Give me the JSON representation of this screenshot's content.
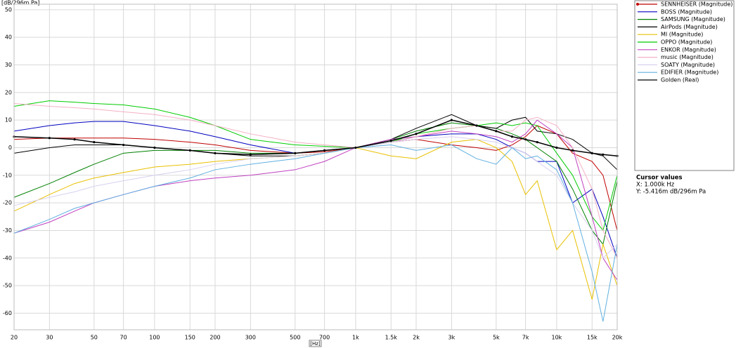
{
  "chart_data": {
    "type": "line",
    "ylabel": "[dB/296m Pa]",
    "xlabel": "[Hz]",
    "x_scale": "log",
    "grid": true,
    "legend": "right",
    "xlim": [
      20,
      20000
    ],
    "ylim": [
      -66,
      52
    ],
    "xticks": [
      20,
      30,
      50,
      70,
      100,
      150,
      200,
      300,
      500,
      700,
      {
        "value": 1000,
        "label": "1k"
      },
      {
        "value": 1500,
        "label": "1.5k"
      },
      {
        "value": 2000,
        "label": "2k"
      },
      {
        "value": 3000,
        "label": "3k"
      },
      {
        "value": 5000,
        "label": "5k"
      },
      {
        "value": 7000,
        "label": "7k"
      },
      {
        "value": 10000,
        "label": "10k"
      },
      {
        "value": 15000,
        "label": "15k"
      },
      {
        "value": 20000,
        "label": "20k"
      }
    ],
    "yticks": [
      50,
      40,
      30,
      20,
      10,
      0,
      -10,
      -20,
      -30,
      -40,
      -50,
      -60
    ],
    "x": [
      20,
      30,
      40,
      50,
      70,
      100,
      150,
      200,
      300,
      500,
      700,
      1000,
      1500,
      2000,
      3000,
      4000,
      5000,
      6000,
      7000,
      8000,
      10000,
      12000,
      15000,
      17000,
      20000
    ],
    "series": [
      {
        "name": "SENNHEISER (Magnitude)",
        "color": "#c00000",
        "marker_in_legend": true,
        "values": [
          3,
          3.5,
          3.5,
          3.5,
          3.5,
          3,
          2,
          1,
          -1,
          -2,
          -1.5,
          0,
          2,
          3,
          1,
          0,
          -1,
          1,
          4,
          8,
          5,
          -2,
          -5,
          -10,
          -30
        ]
      },
      {
        "name": "BOSS (Magnitude)",
        "color": "#0000c0",
        "values": [
          6,
          8,
          9,
          9.5,
          9.5,
          8,
          6,
          4,
          1,
          -2,
          -1,
          0,
          2,
          4,
          5,
          5,
          3,
          0,
          -2,
          -5,
          -5,
          -20,
          -15,
          -25,
          -40
        ]
      },
      {
        "name": "SAMSUNG (Magnitude)",
        "color": "#008000",
        "values": [
          -18,
          -13,
          -9,
          -6,
          -2,
          -1,
          -1,
          -1,
          -2,
          -2,
          -1,
          0,
          3,
          6,
          9,
          8,
          7,
          5,
          3,
          0,
          -5,
          -15,
          -30,
          -35,
          -12
        ]
      },
      {
        "name": "AirPods (Magnitude)",
        "color": "#000000",
        "values": [
          -2,
          0,
          1,
          1,
          1,
          0,
          -1,
          -2,
          -3,
          -3,
          -2,
          0,
          3,
          7,
          12,
          8,
          7,
          10,
          11,
          6,
          5,
          3,
          -2,
          -3,
          -8
        ]
      },
      {
        "name": "MI (Magnitude)",
        "color": "#e8c000",
        "values": [
          -23,
          -17,
          -13,
          -11,
          -9,
          -7,
          -6,
          -5,
          -4,
          -3,
          -2,
          0,
          -3,
          -4,
          2,
          3,
          0,
          -5,
          -17,
          -12,
          -37,
          -30,
          -55,
          -35,
          -50
        ]
      },
      {
        "name": "OPPO (Magnitude)",
        "color": "#00cc00",
        "values": [
          15,
          17,
          16.5,
          16,
          15.5,
          14,
          11,
          8,
          3,
          1,
          0.5,
          0,
          2,
          5,
          7,
          8,
          9,
          8,
          9,
          8,
          -2,
          -10,
          -25,
          -30,
          -10
        ]
      },
      {
        "name": "ENKOR (Magnitude)",
        "color": "#c040c0",
        "values": [
          -31,
          -27,
          -23,
          -20,
          -17,
          -14,
          -12,
          -11,
          -10,
          -8,
          -5,
          0,
          3,
          4,
          6,
          5,
          4,
          2,
          5,
          10,
          5,
          0,
          -25,
          -40,
          -48
        ]
      },
      {
        "name": "music (Magnitude)",
        "color": "#f4b0c4",
        "values": [
          16,
          15,
          14.5,
          14,
          13,
          12,
          10,
          8,
          5,
          2,
          1,
          0,
          2,
          4,
          7,
          8,
          6,
          6,
          10,
          11,
          8,
          0,
          -15,
          -30,
          -40
        ]
      },
      {
        "name": "SOATY (Magnitude)",
        "color": "#d8d0f0",
        "values": [
          -21,
          -18,
          -16,
          -14,
          -12,
          -10,
          -8,
          -6,
          -4,
          -3,
          -2,
          0,
          2,
          3,
          4,
          3,
          2,
          0,
          -2,
          -5,
          -10,
          -20,
          -30,
          -40,
          -35
        ]
      },
      {
        "name": "EDIFIER (Magnitude)",
        "color": "#60b0e0",
        "values": [
          -31,
          -26,
          -22,
          -20,
          -17,
          -14,
          -11,
          -8,
          -6,
          -4,
          -2,
          0,
          1,
          -1,
          1,
          -4,
          -6,
          0,
          -4,
          -3,
          -8,
          -20,
          -45,
          -63,
          -35
        ]
      },
      {
        "name": "Golden (Real)",
        "color": "#000000",
        "markers": true,
        "values": [
          4,
          3.5,
          3,
          2,
          1,
          0,
          -1,
          -2,
          -2.5,
          -2,
          -1,
          0,
          2.5,
          5,
          10,
          8,
          6,
          4,
          3,
          2,
          0,
          -1,
          -2,
          -2.5,
          -3
        ]
      }
    ]
  },
  "cursor_panel": {
    "title": "Cursor values",
    "x": "X: 1.000k Hz",
    "y": "Y: -5.416m dB/296m Pa"
  }
}
